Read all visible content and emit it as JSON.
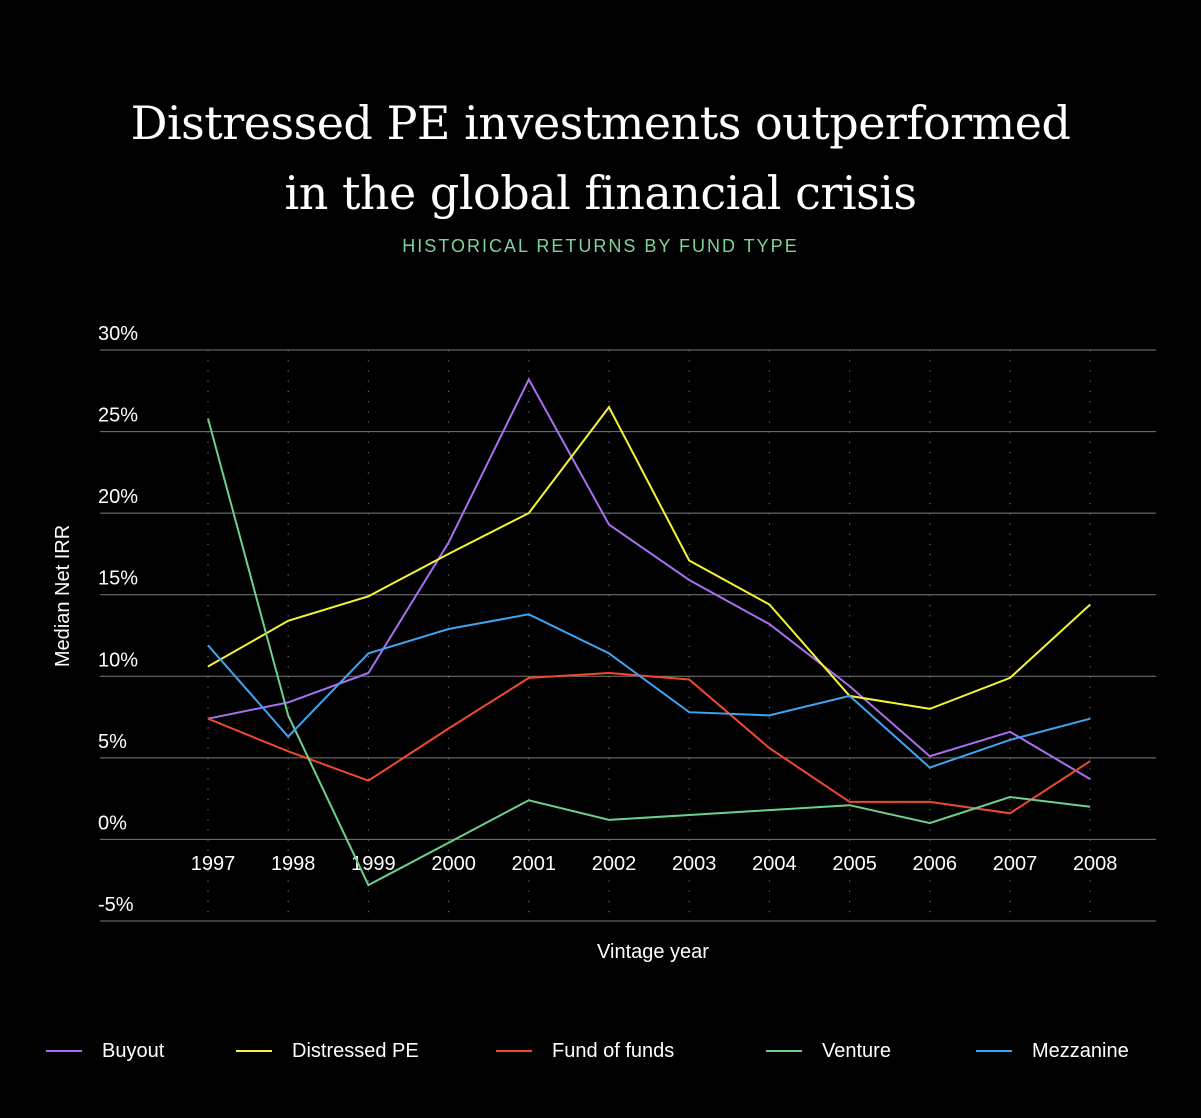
{
  "title_lines": [
    "Distressed PE investments outperformed",
    "in the global financial crisis"
  ],
  "subtitle": "HISTORICAL RETURNS BY FUND TYPE",
  "colors": {
    "background": "#000000",
    "grid": "#7a7a7a",
    "subtitle": "#7fd49a"
  },
  "chart_data": {
    "type": "line",
    "title": "Distressed PE investments outperformed in the global financial crisis",
    "subtitle": "HISTORICAL RETURNS BY FUND TYPE",
    "xlabel": "Vintage year",
    "ylabel": "Median Net IRR",
    "x": [
      "1997",
      "1998",
      "1999",
      "2000",
      "2001",
      "2002",
      "2003",
      "2004",
      "2005",
      "2006",
      "2007",
      "2008"
    ],
    "ylim": [
      -5,
      30
    ],
    "yticks": [
      30,
      25,
      20,
      15,
      10,
      5,
      0,
      -5
    ],
    "ytick_labels": [
      "30%",
      "25%",
      "20%",
      "15%",
      "10%",
      "5%",
      "0%",
      "-5%"
    ],
    "grid": true,
    "legend_position": "bottom",
    "series": [
      {
        "name": "Buyout",
        "color": "#a96ff0",
        "values": [
          7.4,
          8.4,
          10.2,
          18.2,
          28.2,
          19.3,
          15.9,
          13.2,
          9.4,
          5.1,
          6.6,
          3.7
        ]
      },
      {
        "name": "Distressed PE",
        "color": "#f5f535",
        "values": [
          10.6,
          13.4,
          14.9,
          17.5,
          20.0,
          26.5,
          17.1,
          14.4,
          8.8,
          8.0,
          9.9,
          14.4
        ]
      },
      {
        "name": "Fund of funds",
        "color": "#f0492e",
        "values": [
          7.4,
          5.4,
          3.6,
          6.8,
          9.9,
          10.2,
          9.8,
          5.6,
          2.3,
          2.3,
          1.6,
          4.8
        ]
      },
      {
        "name": "Venture",
        "color": "#6dd08c",
        "values": [
          25.8,
          7.6,
          -2.8,
          -0.2,
          2.4,
          1.2,
          1.5,
          1.8,
          2.1,
          1.0,
          2.6,
          2.0
        ]
      },
      {
        "name": "Mezzanine",
        "color": "#3fa3f0",
        "values": [
          11.9,
          6.3,
          11.4,
          12.9,
          13.8,
          11.4,
          7.8,
          7.6,
          8.8,
          4.4,
          6.1,
          7.4
        ]
      }
    ]
  }
}
